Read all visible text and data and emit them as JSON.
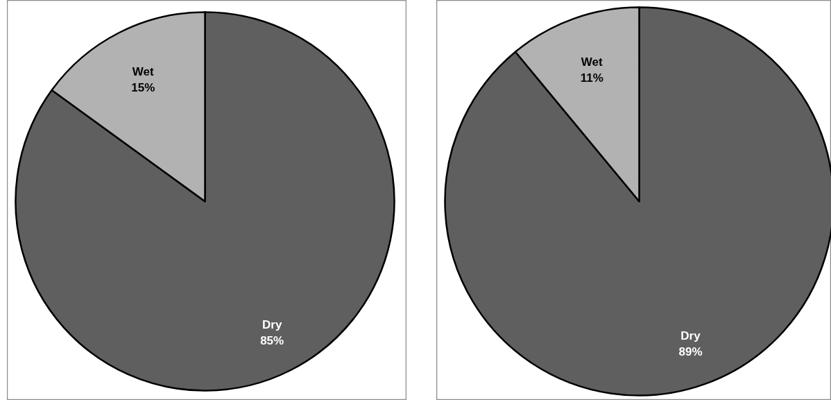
{
  "chart_data": [
    {
      "type": "pie",
      "categories": [
        "Dry",
        "Wet"
      ],
      "values": [
        85,
        15
      ],
      "colors": [
        "#5f5f5f",
        "#b2b2b2"
      ],
      "value_labels": [
        "85%",
        "15%"
      ]
    },
    {
      "type": "pie",
      "categories": [
        "Dry",
        "Wet"
      ],
      "values": [
        89,
        11
      ],
      "colors": [
        "#5f5f5f",
        "#b2b2b2"
      ],
      "value_labels": [
        "89%",
        "11%"
      ]
    }
  ]
}
